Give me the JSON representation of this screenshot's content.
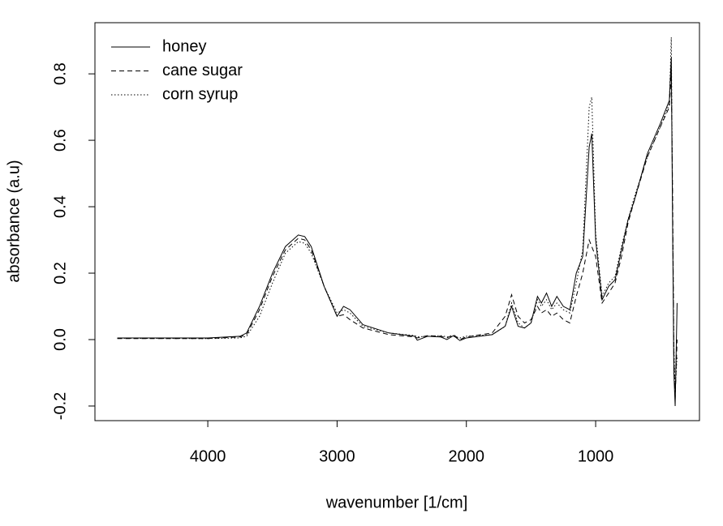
{
  "chart_data": {
    "type": "line",
    "x_label": "wavenumber [1/cm]",
    "y_label": "absorbance (a.u)",
    "x": [
      4700,
      4000,
      3750,
      3700,
      3600,
      3500,
      3400,
      3300,
      3250,
      3200,
      3100,
      3000,
      2950,
      2900,
      2800,
      2600,
      2400,
      2380,
      2300,
      2200,
      2150,
      2100,
      2050,
      2000,
      1800,
      1700,
      1650,
      1600,
      1550,
      1500,
      1450,
      1420,
      1380,
      1340,
      1300,
      1250,
      1200,
      1150,
      1100,
      1050,
      1030,
      1000,
      950,
      900,
      850,
      800,
      750,
      700,
      600,
      500,
      430,
      415,
      405,
      395,
      385,
      370
    ],
    "series": [
      {
        "name": "honey",
        "color": "#000000",
        "linestyle": "solid",
        "values": [
          0.005,
          0.005,
          0.01,
          0.02,
          0.1,
          0.2,
          0.28,
          0.315,
          0.31,
          0.28,
          0.16,
          0.07,
          0.1,
          0.09,
          0.045,
          0.02,
          0.01,
          -0.002,
          0.01,
          0.008,
          0.0,
          0.012,
          -0.003,
          0.005,
          0.015,
          0.04,
          0.1,
          0.04,
          0.035,
          0.05,
          0.13,
          0.11,
          0.14,
          0.1,
          0.13,
          0.1,
          0.09,
          0.2,
          0.25,
          0.58,
          0.62,
          0.3,
          0.12,
          0.16,
          0.18,
          0.27,
          0.36,
          0.42,
          0.56,
          0.65,
          0.72,
          0.85,
          0.35,
          -0.1,
          -0.2,
          0.11
        ]
      },
      {
        "name": "cane sugar",
        "color": "#000000",
        "linestyle": "dashed",
        "values": [
          0.003,
          0.003,
          0.008,
          0.015,
          0.09,
          0.19,
          0.27,
          0.305,
          0.3,
          0.27,
          0.16,
          0.07,
          0.075,
          0.06,
          0.035,
          0.015,
          0.008,
          0.005,
          0.012,
          0.01,
          0.005,
          0.015,
          0.0,
          0.008,
          0.02,
          0.07,
          0.135,
          0.07,
          0.05,
          0.06,
          0.1,
          0.08,
          0.09,
          0.07,
          0.08,
          0.06,
          0.05,
          0.13,
          0.2,
          0.3,
          0.28,
          0.25,
          0.11,
          0.14,
          0.17,
          0.25,
          0.35,
          0.42,
          0.55,
          0.64,
          0.7,
          0.8,
          0.45,
          -0.05,
          -0.18,
          0.0
        ]
      },
      {
        "name": "corn syrup",
        "color": "#000000",
        "linestyle": "dotted",
        "values": [
          0.004,
          0.003,
          0.005,
          0.01,
          0.07,
          0.17,
          0.26,
          0.295,
          0.29,
          0.26,
          0.16,
          0.08,
          0.09,
          0.08,
          0.04,
          0.02,
          0.012,
          0.008,
          0.01,
          0.012,
          0.008,
          0.01,
          0.005,
          0.01,
          0.015,
          0.04,
          0.11,
          0.05,
          0.035,
          0.05,
          0.12,
          0.1,
          0.12,
          0.09,
          0.11,
          0.09,
          0.08,
          0.17,
          0.27,
          0.7,
          0.73,
          0.32,
          0.13,
          0.17,
          0.19,
          0.28,
          0.36,
          0.43,
          0.55,
          0.64,
          0.71,
          0.91,
          0.4,
          -0.02,
          -0.15,
          -0.05
        ]
      }
    ],
    "xlim": [
      4873,
      197
    ],
    "ylim": [
      -0.244,
      0.954
    ],
    "xticks": [
      4000,
      3000,
      2000,
      1000
    ],
    "yticks": [
      -0.2,
      {
        "value": 0,
        "label": "0.0"
      },
      0.2,
      0.4,
      0.6,
      0.8
    ],
    "legend": "top-left"
  }
}
